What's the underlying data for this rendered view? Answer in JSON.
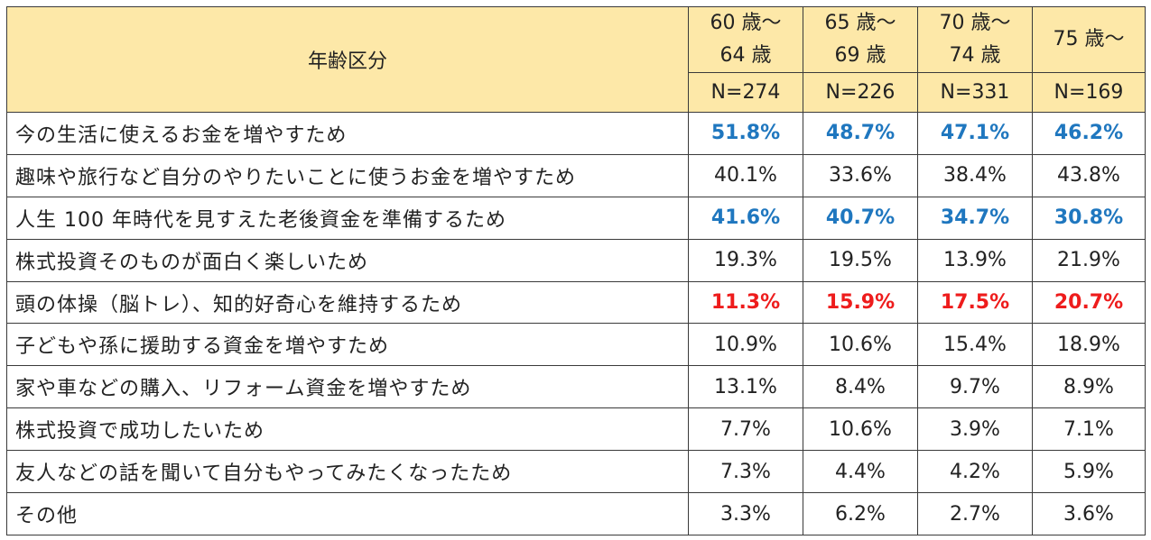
{
  "chart_data": {
    "type": "table",
    "header": {
      "label": "年齢区分",
      "groups": [
        {
          "line1": "60 歳～",
          "line2": "64 歳",
          "n": "N=274"
        },
        {
          "line1": "65 歳～",
          "line2": "69 歳",
          "n": "N=226"
        },
        {
          "line1": "70 歳～",
          "line2": "74 歳",
          "n": "N=331"
        },
        {
          "line1": "75 歳～",
          "line2": "",
          "n": "N=169"
        }
      ]
    },
    "colors": {
      "header_bg": "#fde8a8",
      "highlight_blue": "#1f77bf",
      "highlight_red": "#ee1c1c"
    },
    "rows": [
      {
        "label": "今の生活に使えるお金を増やすため",
        "values": [
          "51.8%",
          "48.7%",
          "47.1%",
          "46.2%"
        ],
        "highlight": "blue"
      },
      {
        "label": "趣味や旅行など自分のやりたいことに使うお金を増やすため",
        "values": [
          "40.1%",
          "33.6%",
          "38.4%",
          "43.8%"
        ],
        "highlight": "none"
      },
      {
        "label": "人生 100 年時代を見すえた老後資金を準備するため",
        "values": [
          "41.6%",
          "40.7%",
          "34.7%",
          "30.8%"
        ],
        "highlight": "blue"
      },
      {
        "label": "株式投資そのものが面白く楽しいため",
        "values": [
          "19.3%",
          "19.5%",
          "13.9%",
          "21.9%"
        ],
        "highlight": "none"
      },
      {
        "label": "頭の体操（脳トレ）、知的好奇心を維持するため",
        "values": [
          "11.3%",
          "15.9%",
          "17.5%",
          "20.7%"
        ],
        "highlight": "red"
      },
      {
        "label": "子どもや孫に援助する資金を増やすため",
        "values": [
          "10.9%",
          "10.6%",
          "15.4%",
          "18.9%"
        ],
        "highlight": "none"
      },
      {
        "label": "家や車などの購入、リフォーム資金を増やすため",
        "values": [
          "13.1%",
          "8.4%",
          "9.7%",
          "8.9%"
        ],
        "highlight": "none"
      },
      {
        "label": "株式投資で成功したいため",
        "values": [
          "7.7%",
          "10.6%",
          "3.9%",
          "7.1%"
        ],
        "highlight": "none"
      },
      {
        "label": "友人などの話を聞いて自分もやってみたくなったため",
        "values": [
          "7.3%",
          "4.4%",
          "4.2%",
          "5.9%"
        ],
        "highlight": "none"
      },
      {
        "label": "その他",
        "values": [
          "3.3%",
          "6.2%",
          "2.7%",
          "3.6%"
        ],
        "highlight": "none"
      }
    ]
  }
}
